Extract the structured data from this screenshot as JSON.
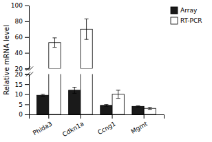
{
  "chart_data": {
    "type": "bar",
    "y_label": "Relative mRNA level",
    "categories": [
      "Phida3",
      "Cdkn1a",
      "Ccng1",
      "Mgmt"
    ],
    "series": [
      {
        "name": "Array",
        "color": "#1a1a1a",
        "values": [
          9.5,
          12.0,
          4.5,
          4.0
        ],
        "errors": [
          0.5,
          1.5,
          0.4,
          0.3
        ]
      },
      {
        "name": "RT-PCR",
        "color": "#ffffff",
        "values": [
          53.0,
          70.0,
          10.0,
          3.0
        ],
        "errors": [
          6.0,
          13.0,
          2.0,
          0.5
        ]
      }
    ],
    "ylim": [
      [
        0,
        20
      ],
      [
        20,
        100
      ]
    ],
    "yticks": [
      [
        0,
        5,
        10,
        15,
        20
      ],
      [
        20,
        40,
        60,
        80,
        100
      ]
    ],
    "grid": false
  }
}
